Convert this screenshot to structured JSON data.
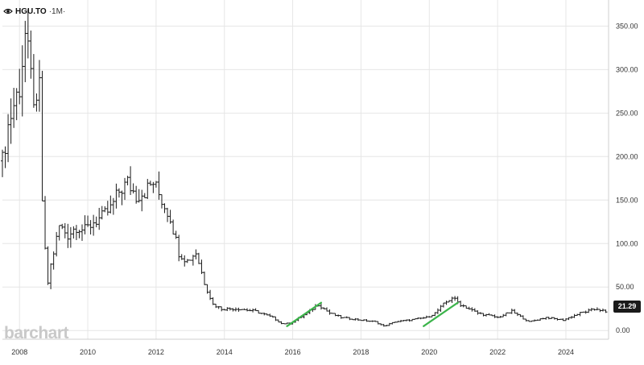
{
  "header": {
    "symbol": "HGU.TO",
    "interval": "·1M·",
    "icon": "eye-icon"
  },
  "watermark": "barchart",
  "last_price": "21.29",
  "colors": {
    "bars": "#1a1a1a",
    "grid": "#e6e6e6",
    "trend": "#3cb44b",
    "price_tag_bg": "#1a1a1a"
  },
  "chart_data": {
    "type": "ohlc",
    "interval": "monthly",
    "x_axis": {
      "start": "2007-07",
      "end": "2025-03",
      "ticks": [
        "2008",
        "2010",
        "2012",
        "2014",
        "2016",
        "2018",
        "2020",
        "2022",
        "2024"
      ]
    },
    "y_axis": {
      "min": -10,
      "max": 380,
      "ticks": [
        "0.00",
        "50.00",
        "100.00",
        "150.00",
        "200.00",
        "250.00",
        "300.00",
        "350.00"
      ]
    },
    "grid": true,
    "close_anchors": [
      [
        "2007-07",
        195
      ],
      [
        "2007-09",
        235
      ],
      [
        "2007-11",
        260
      ],
      [
        "2008-01",
        280
      ],
      [
        "2008-03",
        340
      ],
      [
        "2008-05",
        290
      ],
      [
        "2008-07",
        250
      ],
      [
        "2008-08",
        280
      ],
      [
        "2008-09",
        150
      ],
      [
        "2008-10",
        90
      ],
      [
        "2008-11",
        55
      ],
      [
        "2008-12",
        75
      ],
      [
        "2009-03",
        120
      ],
      [
        "2009-06",
        110
      ],
      [
        "2009-09",
        120
      ],
      [
        "2009-12",
        115
      ],
      [
        "2010-03",
        125
      ],
      [
        "2010-06",
        130
      ],
      [
        "2010-09",
        140
      ],
      [
        "2010-12",
        160
      ],
      [
        "2011-03",
        170
      ],
      [
        "2011-06",
        155
      ],
      [
        "2011-09",
        160
      ],
      [
        "2011-12",
        170
      ],
      [
        "2012-03",
        150
      ],
      [
        "2012-06",
        130
      ],
      [
        "2012-09",
        90
      ],
      [
        "2012-12",
        80
      ],
      [
        "2013-03",
        90
      ],
      [
        "2013-06",
        55
      ],
      [
        "2013-09",
        30
      ],
      [
        "2013-12",
        25
      ],
      [
        "2014-06",
        25
      ],
      [
        "2014-12",
        22
      ],
      [
        "2015-06",
        15
      ],
      [
        "2015-09",
        8
      ],
      [
        "2015-12",
        8
      ],
      [
        "2016-06",
        20
      ],
      [
        "2016-10",
        30
      ],
      [
        "2017-02",
        20
      ],
      [
        "2017-06",
        15
      ],
      [
        "2018-01",
        12
      ],
      [
        "2018-06",
        10
      ],
      [
        "2018-09",
        5
      ],
      [
        "2019-01",
        10
      ],
      [
        "2019-06",
        12
      ],
      [
        "2019-12",
        15
      ],
      [
        "2020-03",
        20
      ],
      [
        "2020-06",
        30
      ],
      [
        "2020-09",
        38
      ],
      [
        "2020-12",
        30
      ],
      [
        "2021-06",
        20
      ],
      [
        "2022-01",
        15
      ],
      [
        "2022-06",
        22
      ],
      [
        "2022-12",
        10
      ],
      [
        "2023-06",
        15
      ],
      [
        "2023-12",
        12
      ],
      [
        "2024-06",
        20
      ],
      [
        "2024-12",
        25
      ],
      [
        "2025-03",
        21.29
      ]
    ],
    "trendlines": [
      {
        "from": [
          "2015-11",
          5
        ],
        "to": [
          "2016-11",
          32
        ]
      },
      {
        "from": [
          "2019-11",
          5
        ],
        "to": [
          "2020-11",
          32
        ]
      }
    ],
    "last_value": 21.29
  }
}
